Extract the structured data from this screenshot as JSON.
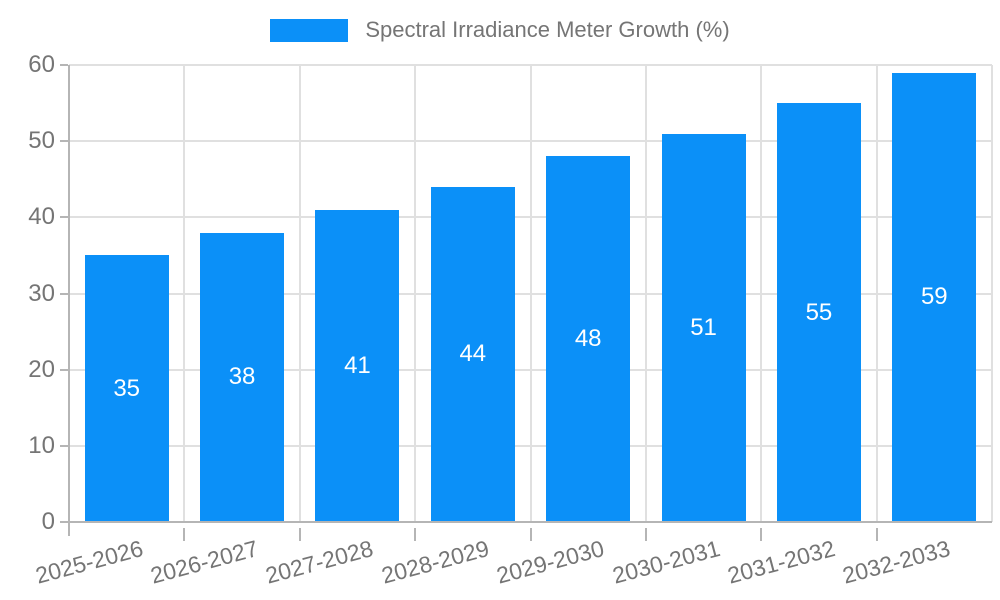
{
  "legend": {
    "label": "Spectral Irradiance Meter Growth (%)"
  },
  "chart_data": {
    "type": "bar",
    "title": "Spectral Irradiance Meter Growth (%)",
    "categories": [
      "2025-2026",
      "2026-2027",
      "2027-2028",
      "2028-2029",
      "2029-2030",
      "2030-2031",
      "2031-2032",
      "2032-2033"
    ],
    "values": [
      35,
      38,
      41,
      44,
      48,
      51,
      55,
      59
    ],
    "xlabel": "",
    "ylabel": "",
    "ylim": [
      0,
      60
    ],
    "yticks": [
      0,
      10,
      20,
      30,
      40,
      50,
      60
    ],
    "grid": true,
    "legend_position": "top-center",
    "x_label_rotation_deg": -15,
    "bar_color": "#0b90f8",
    "value_label_color": "#ffffff",
    "grid_color": "#e0e0e0",
    "axis_color": "#b5b5b5",
    "text_color": "#757575"
  }
}
